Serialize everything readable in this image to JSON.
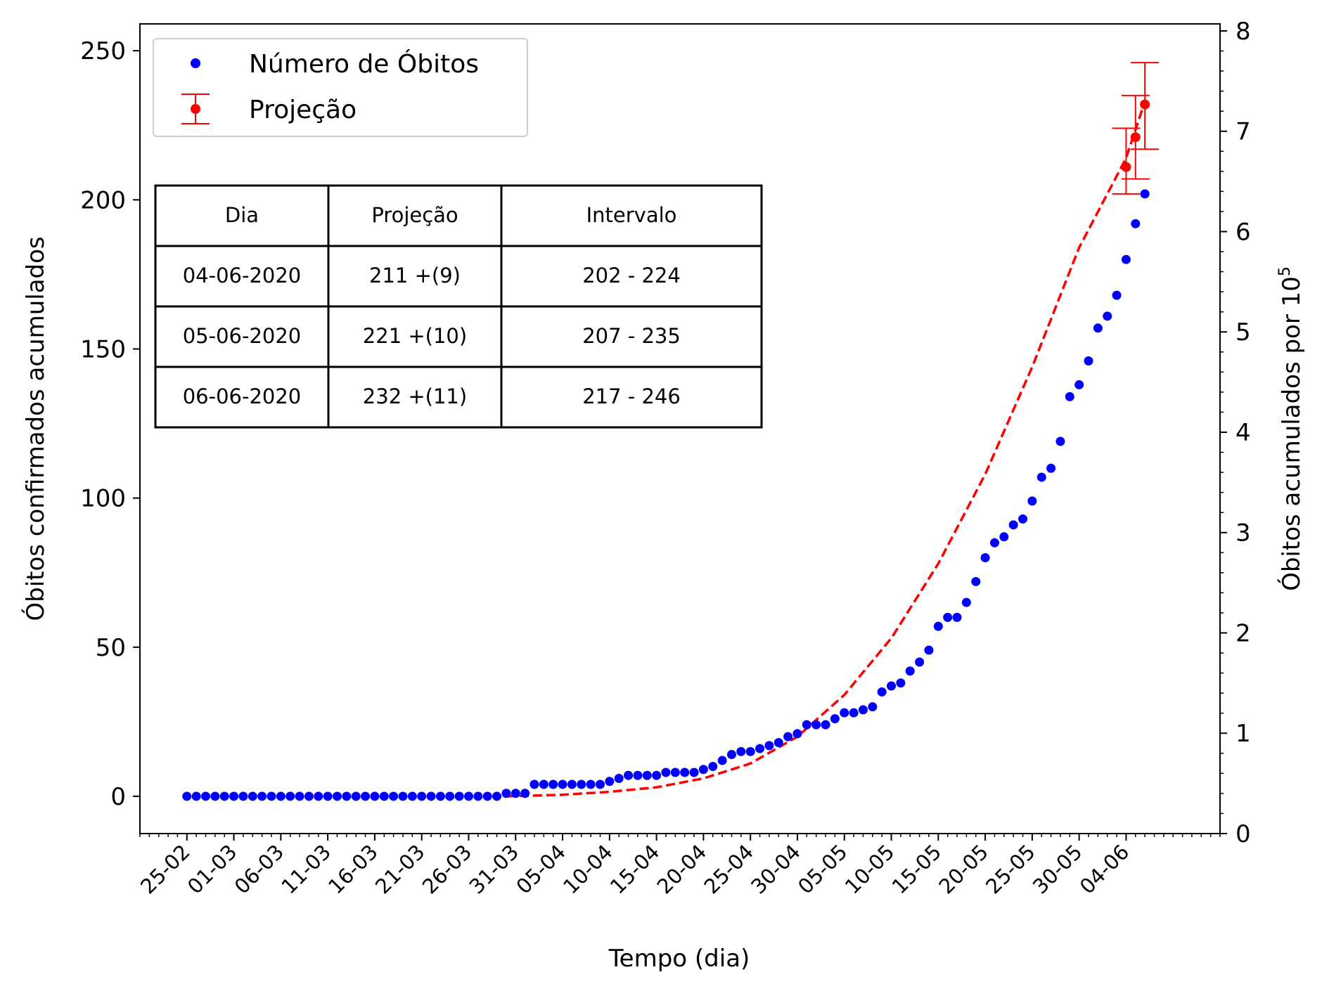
{
  "chart_data": {
    "type": "scatter",
    "xlabel": "Tempo (dia)",
    "ylabel": "Óbitos confirmados acumulados",
    "ylabel_right_prefix": "Óbitos acumulados por 10",
    "ylabel_right_exp": "5",
    "start_date": "2020-02-25",
    "xlim": [
      "2020-02-20",
      "2020-06-14"
    ],
    "ylim": [
      -12.5,
      259
    ],
    "y2lim": [
      0,
      8.07
    ],
    "x_ticks": [
      "25-02",
      "01-03",
      "06-03",
      "11-03",
      "16-03",
      "21-03",
      "26-03",
      "31-03",
      "05-04",
      "10-04",
      "15-04",
      "20-04",
      "25-04",
      "30-04",
      "05-05",
      "10-05",
      "15-05",
      "20-05",
      "25-05",
      "30-05",
      "04-06"
    ],
    "y_ticks": [
      0,
      50,
      100,
      150,
      200,
      250
    ],
    "y2_ticks": [
      0,
      1,
      2,
      3,
      4,
      5,
      6,
      7,
      8
    ],
    "legend_position": "top-left",
    "colors": {
      "observed": "#0000ff",
      "projection": "#ff0000"
    },
    "series": [
      {
        "name": "Número de Óbitos",
        "style": "points",
        "color": "#0000ff",
        "y": [
          0,
          0,
          0,
          0,
          0,
          0,
          0,
          0,
          0,
          0,
          0,
          0,
          0,
          0,
          0,
          0,
          0,
          0,
          0,
          0,
          0,
          0,
          0,
          0,
          0,
          0,
          0,
          0,
          0,
          0,
          0,
          0,
          0,
          0,
          1,
          1,
          1,
          4,
          4,
          4,
          4,
          4,
          4,
          4,
          4,
          5,
          6,
          7,
          7,
          7,
          7,
          8,
          8,
          8,
          8,
          9,
          10,
          12,
          14,
          15,
          15,
          16,
          17,
          18,
          20,
          21,
          24,
          24,
          24,
          26,
          28,
          28,
          29,
          30,
          35,
          37,
          38,
          42,
          45,
          49,
          57,
          60,
          60,
          65,
          72,
          80,
          85,
          87,
          91,
          93,
          99,
          107,
          110,
          119,
          134,
          138,
          146,
          157,
          161,
          168,
          180,
          192,
          202
        ]
      },
      {
        "name": "Projeção",
        "style": "errorbar",
        "color": "#ff0000",
        "points": [
          {
            "date": "2020-06-04",
            "value": 211,
            "low": 202,
            "high": 224
          },
          {
            "date": "2020-06-05",
            "value": 221,
            "low": 207,
            "high": 235
          },
          {
            "date": "2020-06-06",
            "value": 232,
            "low": 217,
            "high": 246
          }
        ]
      },
      {
        "name": "fit",
        "style": "dashed-line",
        "color": "#ff0000",
        "x": [
          "2020-03-30",
          "2020-04-05",
          "2020-04-10",
          "2020-04-15",
          "2020-04-20",
          "2020-04-25",
          "2020-04-30",
          "2020-05-05",
          "2020-05-10",
          "2020-05-15",
          "2020-05-20",
          "2020-05-25",
          "2020-05-30",
          "2020-06-04",
          "2020-06-06"
        ],
        "y": [
          0,
          0.5,
          1.5,
          3,
          6,
          11,
          20,
          34,
          53,
          78,
          108,
          144,
          184,
          214,
          233
        ]
      }
    ],
    "table": {
      "headers": [
        "Dia",
        "Projeção",
        "Intervalo"
      ],
      "rows": [
        [
          "04-06-2020",
          "211 +(9)",
          "202 - 224"
        ],
        [
          "05-06-2020",
          "221 +(10)",
          "207 - 235"
        ],
        [
          "06-06-2020",
          "232 +(11)",
          "217 - 246"
        ]
      ]
    }
  }
}
